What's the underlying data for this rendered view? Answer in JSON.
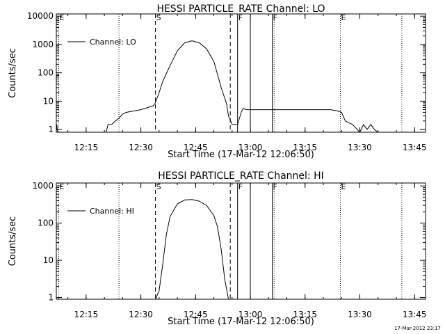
{
  "timestamp": "17-Mar-2012 23:17",
  "chart_data": [
    {
      "type": "line",
      "title": "HESSI PARTICLE_RATE Channel: LO",
      "xlabel": "Start Time (17-Mar-12 12:06:50)",
      "ylabel": "Counts/sec",
      "yscale": "log",
      "xlim": [
        "12:06:50",
        "13:48:00"
      ],
      "ylim": [
        0.8,
        12000
      ],
      "x_ticks": [
        "12:15",
        "12:30",
        "12:45",
        "13:00",
        "13:15",
        "13:30",
        "13:45"
      ],
      "y_ticks": [
        "1",
        "10",
        "100",
        "1000",
        "10000"
      ],
      "legend": "top-left",
      "series": [
        {
          "name": "Channel: LO",
          "x": [
            "12:06:50",
            "12:06:55",
            "12:07:00",
            "12:07:05",
            "12:07:10",
            "12:07:15",
            "12:09:00",
            "12:11:00",
            "12:13:00",
            "12:15:00",
            "12:17:00",
            "12:19:00",
            "12:20:30",
            "12:21:00",
            "12:22:00",
            "12:23:00",
            "12:24:00",
            "12:25:00",
            "12:26:00",
            "12:28:00",
            "12:30:00",
            "12:32:00",
            "12:33:30",
            "12:34:00",
            "12:35:00",
            "12:36:00",
            "12:38:00",
            "12:40:00",
            "12:42:00",
            "12:44:00",
            "12:46:00",
            "12:48:00",
            "12:50:00",
            "12:52:00",
            "12:53:30",
            "12:54:00",
            "12:55:00",
            "12:55:30",
            "12:56:30",
            "12:57:30",
            "12:58:00",
            "12:59:00",
            "13:01:00",
            "13:04:00",
            "13:07:00",
            "13:10:00",
            "13:13:00",
            "13:16:00",
            "13:19:00",
            "13:22:00",
            "13:24:00",
            "13:25:00",
            "13:26:00",
            "13:28:00",
            "13:30:00",
            "13:31:00",
            "13:32:00",
            "13:33:00",
            "13:34:00",
            "13:35:00"
          ],
          "y": [
            1.5,
            1.0,
            1.5,
            1.0,
            0.8,
            0.8,
            0.8,
            0.8,
            0.8,
            0.8,
            0.8,
            0.8,
            0.8,
            1.5,
            1.5,
            2.0,
            2.5,
            3.5,
            4.0,
            4.5,
            5.0,
            6.0,
            7.0,
            9.0,
            20,
            50,
            180,
            600,
            1150,
            1350,
            1150,
            700,
            250,
            30,
            8,
            3,
            1.5,
            1.5,
            1.5,
            4.0,
            5.5,
            5.0,
            5.0,
            5.0,
            5.0,
            5.0,
            5.0,
            5.0,
            5.0,
            5.0,
            4.5,
            4.0,
            2.0,
            1.5,
            0.8,
            1.5,
            1.0,
            1.5,
            1.0,
            0.8
          ]
        }
      ],
      "event_markers": [
        {
          "label": "E",
          "time": "12:07:30",
          "style": "dotted"
        },
        {
          "label": "",
          "time": "12:24:00",
          "style": "dotted"
        },
        {
          "label": "S",
          "time": "12:34:00",
          "style": "dashed"
        },
        {
          "label": "",
          "time": "12:54:30",
          "style": "dashed"
        },
        {
          "label": "F",
          "time": "12:56:30",
          "style": "solid"
        },
        {
          "label": "",
          "time": "13:00:00",
          "style": "solid"
        },
        {
          "label": "F",
          "time": "13:06:00",
          "style": "solid"
        },
        {
          "label": "",
          "time": "13:06:30",
          "style": "dotted"
        },
        {
          "label": "E",
          "time": "13:24:40",
          "style": "dotted"
        },
        {
          "label": "",
          "time": "13:41:30",
          "style": "dotted"
        }
      ]
    },
    {
      "type": "line",
      "title": "HESSI PARTICLE_RATE Channel: HI",
      "xlabel": "Start Time (17-Mar-12 12:06:50)",
      "ylabel": "Counts/sec",
      "yscale": "log",
      "xlim": [
        "12:06:50",
        "13:48:00"
      ],
      "ylim": [
        0.9,
        1200
      ],
      "x_ticks": [
        "12:15",
        "12:30",
        "12:45",
        "13:00",
        "13:15",
        "13:30",
        "13:45"
      ],
      "y_ticks": [
        "1",
        "10",
        "100",
        "1000"
      ],
      "legend": "top-left",
      "series": [
        {
          "name": "Channel: HI",
          "x": [
            "12:34:00",
            "12:35:00",
            "12:36:00",
            "12:37:00",
            "12:38:00",
            "12:40:00",
            "12:42:00",
            "12:44:00",
            "12:46:00",
            "12:48:00",
            "12:50:00",
            "12:51:00",
            "12:52:00",
            "12:53:00",
            "12:54:00"
          ],
          "y": [
            0.9,
            1.5,
            8,
            50,
            150,
            330,
            420,
            430,
            390,
            300,
            160,
            80,
            20,
            3,
            0.9
          ]
        }
      ],
      "event_markers": [
        {
          "label": "E",
          "time": "12:07:30",
          "style": "dotted"
        },
        {
          "label": "",
          "time": "12:24:00",
          "style": "dotted"
        },
        {
          "label": "S",
          "time": "12:34:00",
          "style": "dashed"
        },
        {
          "label": "",
          "time": "12:54:30",
          "style": "dashed"
        },
        {
          "label": "F",
          "time": "12:56:30",
          "style": "solid"
        },
        {
          "label": "",
          "time": "13:00:00",
          "style": "solid"
        },
        {
          "label": "F",
          "time": "13:06:00",
          "style": "solid"
        },
        {
          "label": "",
          "time": "13:06:30",
          "style": "dotted"
        },
        {
          "label": "E",
          "time": "13:24:40",
          "style": "dotted"
        },
        {
          "label": "",
          "time": "13:41:30",
          "style": "dotted"
        }
      ]
    }
  ]
}
